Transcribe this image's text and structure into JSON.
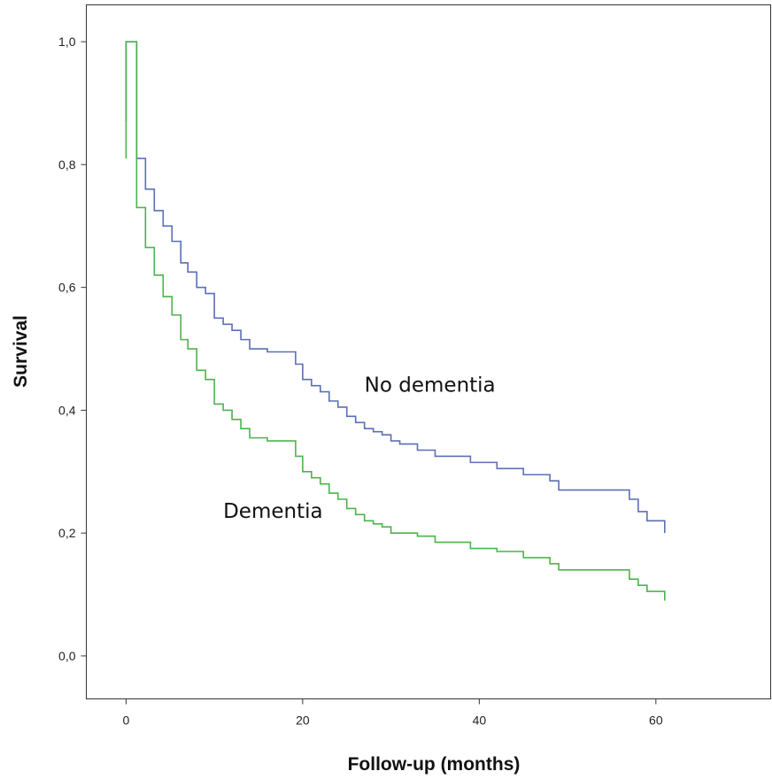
{
  "chart_data": {
    "type": "line",
    "step": true,
    "xlabel": "Follow-up (months)",
    "ylabel": "Survival",
    "xlim": [
      -4.5,
      73
    ],
    "ylim": [
      -0.07,
      1.06
    ],
    "xticks": [
      0,
      20,
      40,
      60
    ],
    "xtick_labels": [
      "0",
      "20",
      "40",
      "60"
    ],
    "yticks": [
      0.0,
      0.2,
      0.4,
      0.6,
      0.8,
      1.0
    ],
    "ytick_labels": [
      "0,0",
      "0,2",
      "0,4",
      "0,6",
      "0,8",
      "1,0"
    ],
    "grid": false,
    "legend": "none",
    "series": [
      {
        "name": "No dementia",
        "color": "#5b6fb5",
        "points": [
          [
            0,
            0.87
          ],
          [
            0,
            1.0
          ],
          [
            1.2,
            1.0
          ],
          [
            1.2,
            0.81
          ],
          [
            2.2,
            0.81
          ],
          [
            2.2,
            0.76
          ],
          [
            3.2,
            0.76
          ],
          [
            3.2,
            0.725
          ],
          [
            4.2,
            0.725
          ],
          [
            4.2,
            0.7
          ],
          [
            5.2,
            0.7
          ],
          [
            5.2,
            0.675
          ],
          [
            6.2,
            0.675
          ],
          [
            6.2,
            0.64
          ],
          [
            7.0,
            0.64
          ],
          [
            7.0,
            0.625
          ],
          [
            8.0,
            0.625
          ],
          [
            8.0,
            0.6
          ],
          [
            9.0,
            0.6
          ],
          [
            9.0,
            0.59
          ],
          [
            10.0,
            0.59
          ],
          [
            10.0,
            0.55
          ],
          [
            11.0,
            0.55
          ],
          [
            11.0,
            0.54
          ],
          [
            12.0,
            0.54
          ],
          [
            12.0,
            0.53
          ],
          [
            13.0,
            0.53
          ],
          [
            13.0,
            0.515
          ],
          [
            14.0,
            0.515
          ],
          [
            14.0,
            0.5
          ],
          [
            16.0,
            0.5
          ],
          [
            16.0,
            0.495
          ],
          [
            19.2,
            0.495
          ],
          [
            19.2,
            0.475
          ],
          [
            20.0,
            0.475
          ],
          [
            20.0,
            0.45
          ],
          [
            21.0,
            0.45
          ],
          [
            21.0,
            0.44
          ],
          [
            22.0,
            0.44
          ],
          [
            22.0,
            0.43
          ],
          [
            23.0,
            0.43
          ],
          [
            23.0,
            0.415
          ],
          [
            24.0,
            0.415
          ],
          [
            24.0,
            0.405
          ],
          [
            25.0,
            0.405
          ],
          [
            25.0,
            0.39
          ],
          [
            26.0,
            0.39
          ],
          [
            26.0,
            0.38
          ],
          [
            27.0,
            0.38
          ],
          [
            27.0,
            0.37
          ],
          [
            28.0,
            0.37
          ],
          [
            28.0,
            0.365
          ],
          [
            29.0,
            0.365
          ],
          [
            29.0,
            0.36
          ],
          [
            30.0,
            0.36
          ],
          [
            30.0,
            0.35
          ],
          [
            31.0,
            0.35
          ],
          [
            31.0,
            0.345
          ],
          [
            33.0,
            0.345
          ],
          [
            33.0,
            0.335
          ],
          [
            35.0,
            0.335
          ],
          [
            35.0,
            0.325
          ],
          [
            39.0,
            0.325
          ],
          [
            39.0,
            0.315
          ],
          [
            42.0,
            0.315
          ],
          [
            42.0,
            0.305
          ],
          [
            45.0,
            0.305
          ],
          [
            45.0,
            0.295
          ],
          [
            48.0,
            0.295
          ],
          [
            48.0,
            0.285
          ],
          [
            49.0,
            0.285
          ],
          [
            49.0,
            0.27
          ],
          [
            57.0,
            0.27
          ],
          [
            57.0,
            0.255
          ],
          [
            58.0,
            0.255
          ],
          [
            58.0,
            0.235
          ],
          [
            59.0,
            0.235
          ],
          [
            59.0,
            0.22
          ],
          [
            61.0,
            0.22
          ],
          [
            61.0,
            0.2
          ]
        ]
      },
      {
        "name": "Dementia",
        "color": "#4db34d",
        "points": [
          [
            0,
            0.81
          ],
          [
            0,
            1.0
          ],
          [
            1.2,
            1.0
          ],
          [
            1.2,
            0.73
          ],
          [
            2.2,
            0.73
          ],
          [
            2.2,
            0.665
          ],
          [
            3.2,
            0.665
          ],
          [
            3.2,
            0.62
          ],
          [
            4.2,
            0.62
          ],
          [
            4.2,
            0.585
          ],
          [
            5.2,
            0.585
          ],
          [
            5.2,
            0.555
          ],
          [
            6.2,
            0.555
          ],
          [
            6.2,
            0.515
          ],
          [
            7.0,
            0.515
          ],
          [
            7.0,
            0.5
          ],
          [
            8.0,
            0.5
          ],
          [
            8.0,
            0.465
          ],
          [
            9.0,
            0.465
          ],
          [
            9.0,
            0.45
          ],
          [
            10.0,
            0.45
          ],
          [
            10.0,
            0.41
          ],
          [
            11.0,
            0.41
          ],
          [
            11.0,
            0.4
          ],
          [
            12.0,
            0.4
          ],
          [
            12.0,
            0.385
          ],
          [
            13.0,
            0.385
          ],
          [
            13.0,
            0.37
          ],
          [
            14.0,
            0.37
          ],
          [
            14.0,
            0.355
          ],
          [
            16.0,
            0.355
          ],
          [
            16.0,
            0.35
          ],
          [
            19.2,
            0.35
          ],
          [
            19.2,
            0.325
          ],
          [
            20.0,
            0.325
          ],
          [
            20.0,
            0.3
          ],
          [
            21.0,
            0.3
          ],
          [
            21.0,
            0.29
          ],
          [
            22.0,
            0.29
          ],
          [
            22.0,
            0.28
          ],
          [
            23.0,
            0.28
          ],
          [
            23.0,
            0.265
          ],
          [
            24.0,
            0.265
          ],
          [
            24.0,
            0.255
          ],
          [
            25.0,
            0.255
          ],
          [
            25.0,
            0.24
          ],
          [
            26.0,
            0.24
          ],
          [
            26.0,
            0.23
          ],
          [
            27.0,
            0.23
          ],
          [
            27.0,
            0.22
          ],
          [
            28.0,
            0.22
          ],
          [
            28.0,
            0.215
          ],
          [
            29.0,
            0.215
          ],
          [
            29.0,
            0.21
          ],
          [
            30.0,
            0.21
          ],
          [
            30.0,
            0.2
          ],
          [
            33.0,
            0.2
          ],
          [
            33.0,
            0.195
          ],
          [
            35.0,
            0.195
          ],
          [
            35.0,
            0.185
          ],
          [
            39.0,
            0.185
          ],
          [
            39.0,
            0.175
          ],
          [
            42.0,
            0.175
          ],
          [
            42.0,
            0.17
          ],
          [
            45.0,
            0.17
          ],
          [
            45.0,
            0.16
          ],
          [
            48.0,
            0.16
          ],
          [
            48.0,
            0.15
          ],
          [
            49.0,
            0.15
          ],
          [
            49.0,
            0.14
          ],
          [
            57.0,
            0.14
          ],
          [
            57.0,
            0.125
          ],
          [
            58.0,
            0.125
          ],
          [
            58.0,
            0.115
          ],
          [
            59.0,
            0.115
          ],
          [
            59.0,
            0.105
          ],
          [
            61.0,
            0.105
          ],
          [
            61.0,
            0.09
          ]
        ]
      }
    ],
    "annotations": [
      {
        "text": "No dementia",
        "x": 27,
        "y": 0.43
      },
      {
        "text": "Dementia",
        "x": 11,
        "y": 0.225
      }
    ]
  }
}
